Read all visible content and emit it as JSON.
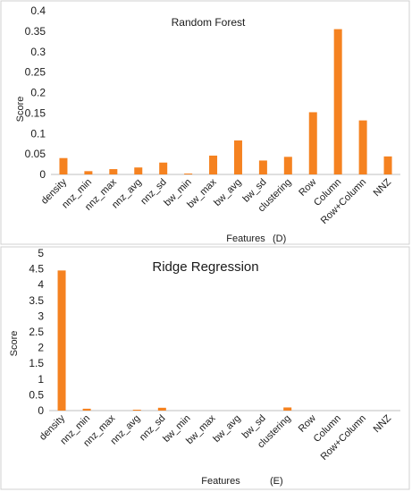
{
  "chart_data": [
    {
      "type": "bar",
      "title": "Random Forest",
      "xlabel": "Features",
      "ylabel": "Score",
      "panel_label": "(D)",
      "categories": [
        "density",
        "nnz_min",
        "nnz_max",
        "nnz_avg",
        "nnz_sd",
        "bw_min",
        "bw_max",
        "bw_avg",
        "bw_sd",
        "clustering",
        "Row",
        "Column",
        "Row+Column",
        "NNZ"
      ],
      "values": [
        0.04,
        0.008,
        0.013,
        0.017,
        0.029,
        0.002,
        0.046,
        0.083,
        0.034,
        0.043,
        0.152,
        0.355,
        0.132,
        0.044
      ],
      "ylim": [
        0,
        0.4
      ],
      "yticks": [
        "0",
        "0.05",
        "0.1",
        "0.15",
        "0.2",
        "0.25",
        "0.3",
        "0.35",
        "0.4"
      ],
      "grid": false,
      "bar_color": "#f58220"
    },
    {
      "type": "bar",
      "title": "Ridge Regression",
      "xlabel": "Features",
      "ylabel": "Score",
      "panel_label": "(E)",
      "categories": [
        "density",
        "nnz_min",
        "nnz_max",
        "nnz_avg",
        "nnz_sd",
        "bw_min",
        "bw_max",
        "bw_avg",
        "bw_sd",
        "clustering",
        "Row",
        "Column",
        "Row+Column",
        "NNZ"
      ],
      "values": [
        4.45,
        0.06,
        0.0,
        0.01,
        0.09,
        0.0,
        0.0,
        0.0,
        0.0,
        0.1,
        0.0,
        0.0,
        0.0,
        0.0
      ],
      "ylim": [
        0,
        5
      ],
      "yticks": [
        "0",
        "0.5",
        "1",
        "1.5",
        "2",
        "2.5",
        "3",
        "3.5",
        "4",
        "4.5",
        "5"
      ],
      "grid": false,
      "bar_color": "#f58220"
    }
  ]
}
